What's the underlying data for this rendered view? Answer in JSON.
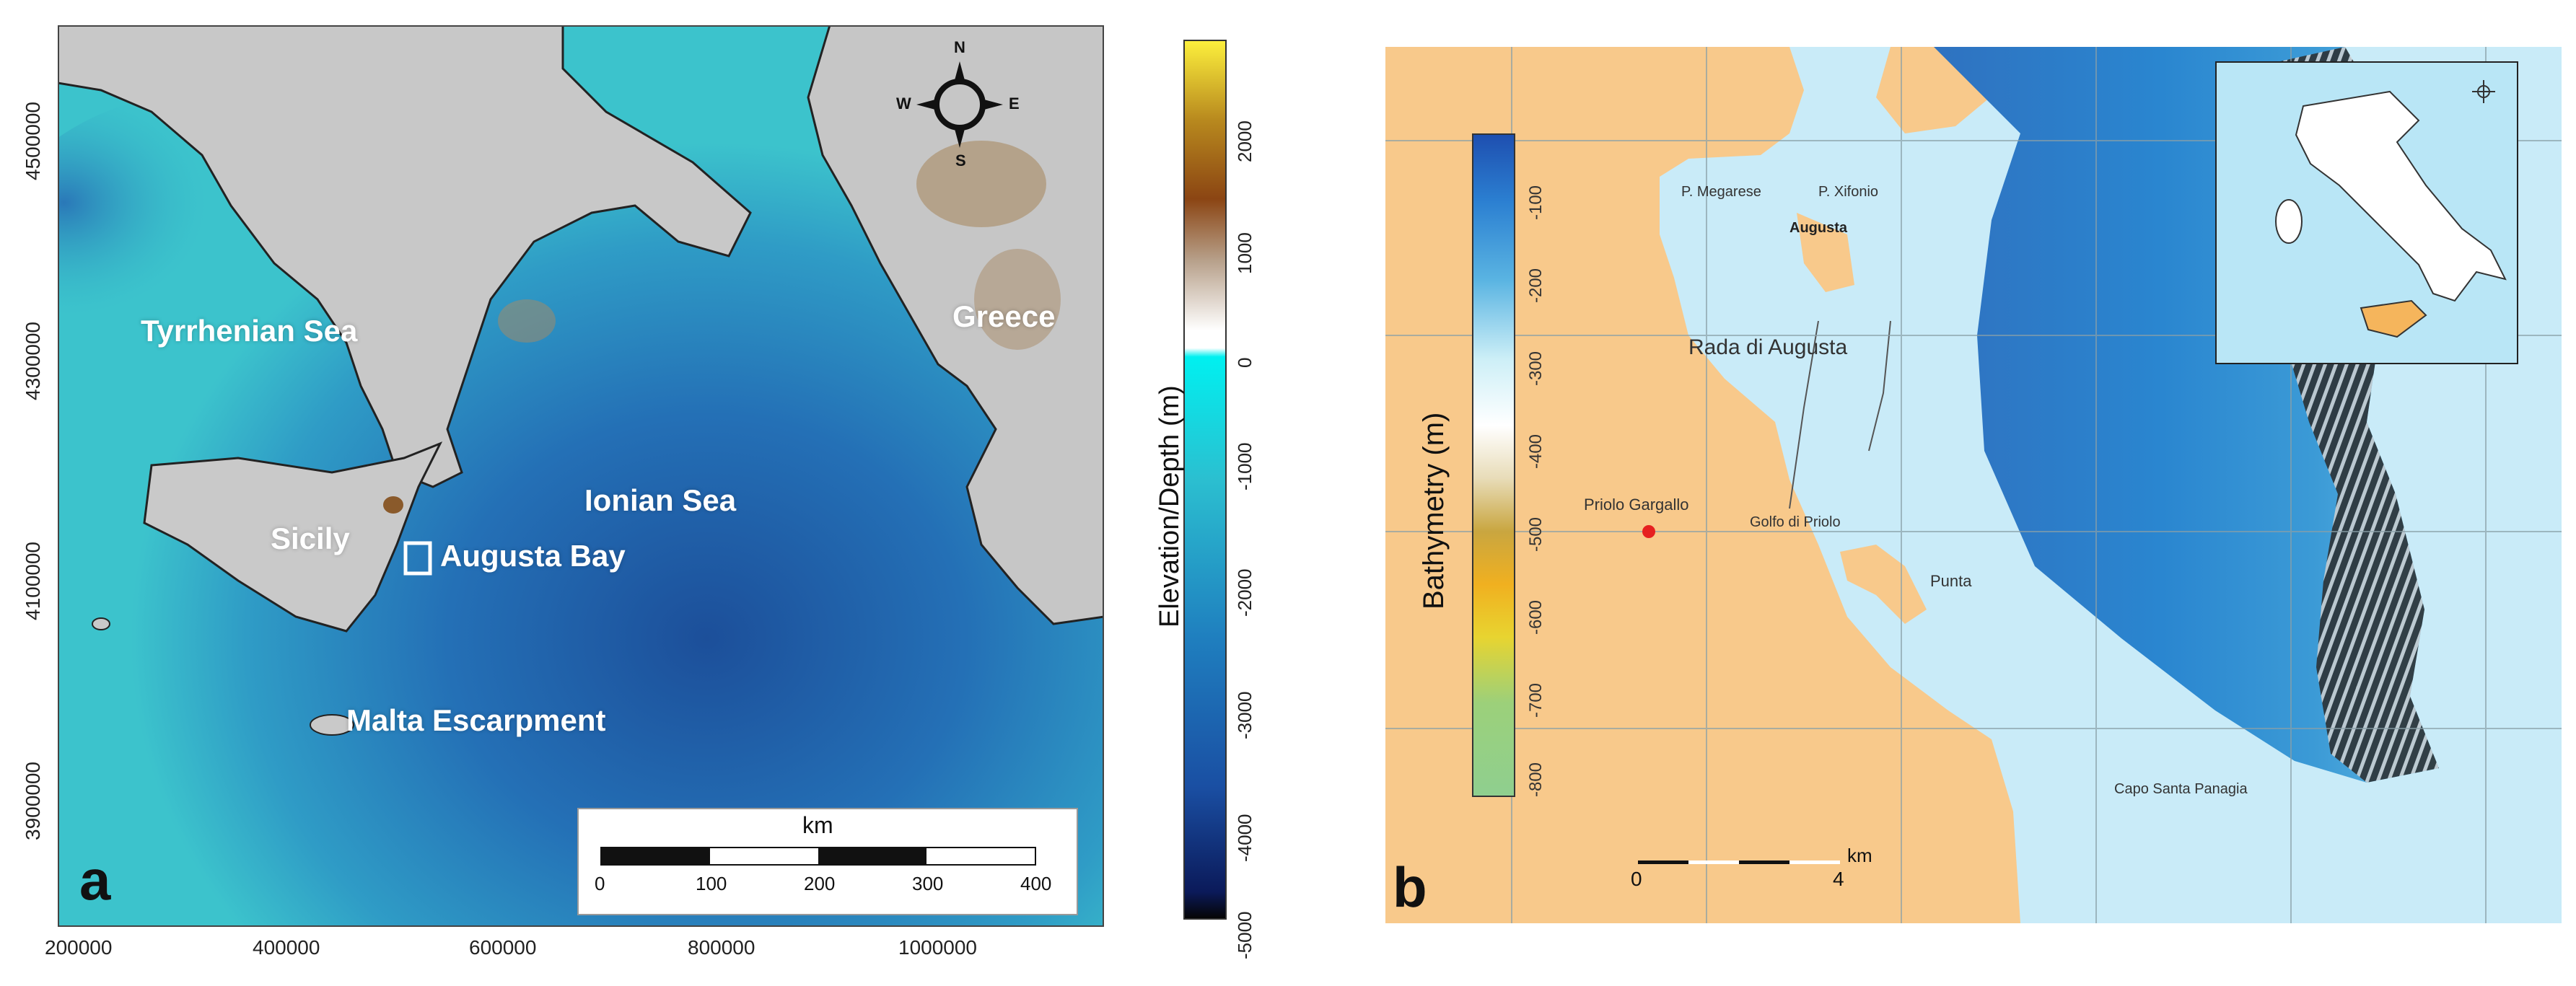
{
  "panel_a": {
    "letter": "a",
    "y_ticks": [
      "4500000",
      "4300000",
      "4100000",
      "3900000"
    ],
    "x_ticks": [
      "200000",
      "400000",
      "600000",
      "800000",
      "1000000"
    ],
    "labels": {
      "tyrrhenian": "Tyrrhenian Sea",
      "ionian": "Ionian Sea",
      "greece": "Greece",
      "sicily": "Sicily",
      "augusta_bay": "Augusta Bay",
      "malta": "Malta Escarpment"
    },
    "compass": {
      "n": "N",
      "s": "S",
      "e": "E",
      "w": "W"
    },
    "scale": {
      "title": "km",
      "ticks": [
        "0",
        "100",
        "200",
        "300",
        "400"
      ]
    }
  },
  "colorbar_a": {
    "title": "Elevation/Depth (m)",
    "ticks": [
      "2000",
      "1000",
      "0",
      "-1000",
      "-2000",
      "-3000",
      "-4000",
      "-5000"
    ]
  },
  "panel_b": {
    "letter": "b",
    "colorbar": {
      "title": "Bathymetry (m)",
      "ticks": [
        "-100",
        "-200",
        "-300",
        "-400",
        "-500",
        "-600",
        "-700",
        "-800"
      ]
    },
    "places": {
      "megarese": "P. Megarese",
      "xifonio": "P. Xifonio",
      "augusta": "Augusta",
      "rada": "Rada di Augusta",
      "priolo": "Priolo Gargallo",
      "golfo": "Golfo di Priolo",
      "punta": "Punta",
      "capo": "Capo Santa Panagia"
    },
    "scale": {
      "unit": "km",
      "zero": "0",
      "four": "4"
    }
  },
  "colors": {
    "sea_light": "#39c8cc",
    "sea_deep": "#1f5fa0",
    "land_grey": "#c9c9c9",
    "land_orange": "#f7c98a",
    "sea_b": "#c8ecf7"
  }
}
